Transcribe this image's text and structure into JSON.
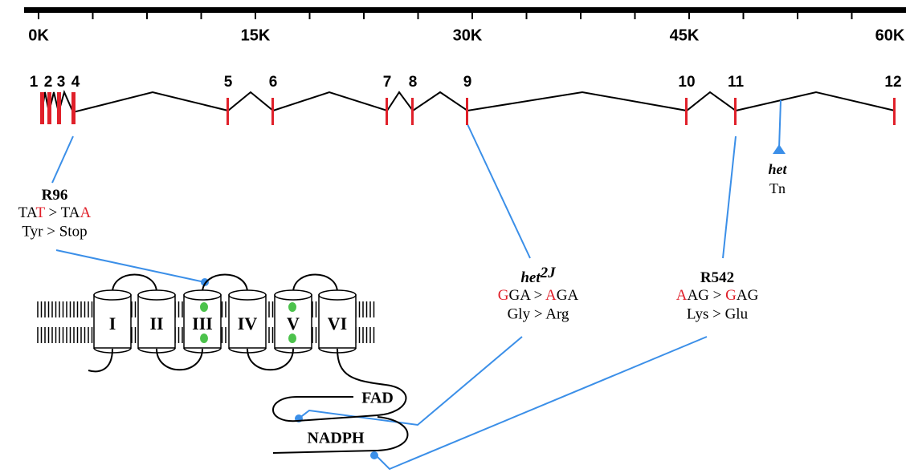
{
  "ruler": {
    "ticks": [
      "0K",
      "15K",
      "30K",
      "45K",
      "60K"
    ]
  },
  "exons": [
    "1",
    "2",
    "3",
    "4",
    "5",
    "6",
    "7",
    "8",
    "9",
    "10",
    "11",
    "12"
  ],
  "mutations": [
    {
      "name": "R96",
      "codon": [
        {
          "text": "TA"
        },
        {
          "text": "T",
          "color": "#e0202a"
        },
        {
          "text": " > TA"
        },
        {
          "text": "A",
          "color": "#e0202a"
        }
      ],
      "amino_acid": "Tyr > Stop"
    },
    {
      "name": "het",
      "superscript": "2J",
      "codon": [
        {
          "text": "G",
          "color": "#e0202a"
        },
        {
          "text": "GA > "
        },
        {
          "text": "A",
          "color": "#e0202a"
        },
        {
          "text": "GA"
        }
      ],
      "amino_acid": "Gly > Arg"
    },
    {
      "name": "R542",
      "codon": [
        {
          "text": "A",
          "color": "#e0202a"
        },
        {
          "text": "AG > "
        },
        {
          "text": "G",
          "color": "#e0202a"
        },
        {
          "text": "AG"
        }
      ],
      "amino_acid": "Lys > Glu"
    }
  ],
  "insertion": {
    "name": "het",
    "type": "Tn"
  },
  "protein": {
    "helices": [
      "I",
      "II",
      "III",
      "IV",
      "V",
      "VI"
    ],
    "domains": [
      "FAD",
      "NADPH"
    ]
  }
}
